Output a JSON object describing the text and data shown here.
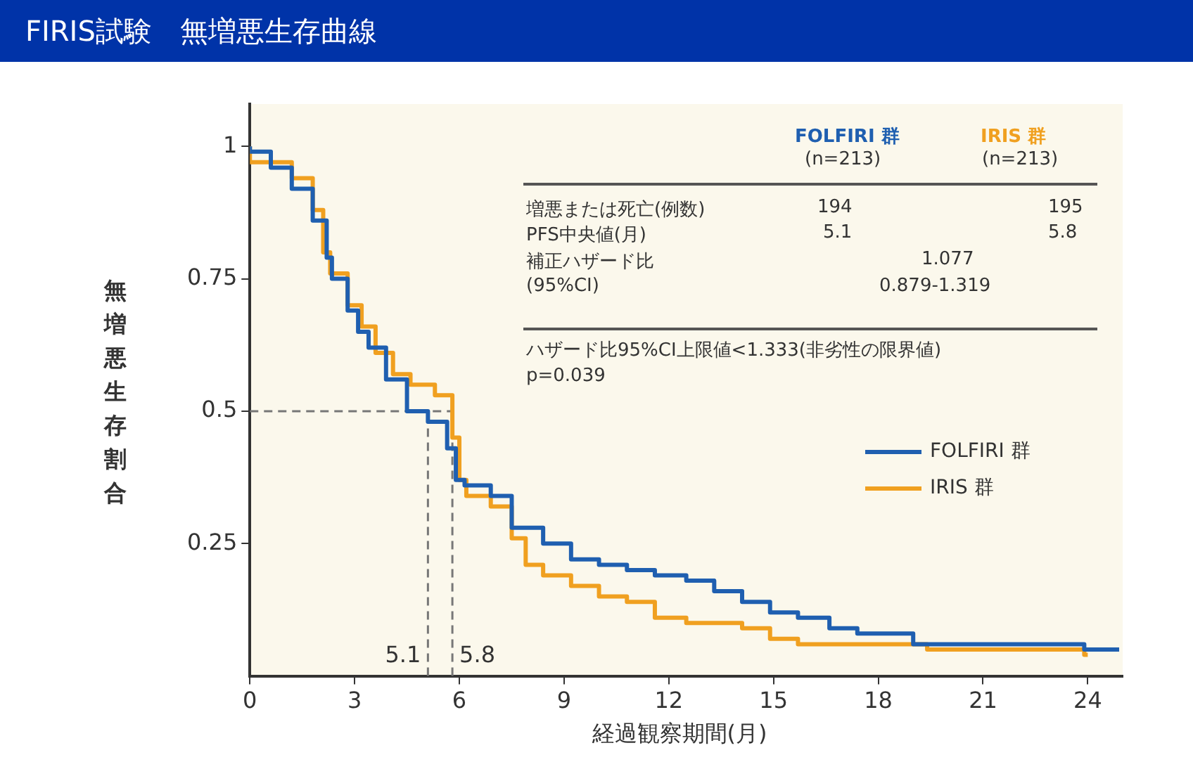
{
  "chart_data": {
    "type": "step",
    "title": "FIRIS試験　無増悪生存曲線",
    "xlabel": "経過観察期間(月)",
    "ylabel": "無増悪生存割合",
    "xlim": [
      0,
      25
    ],
    "xticks": [
      0,
      3,
      6,
      9,
      12,
      15,
      18,
      21,
      24
    ],
    "ylim": [
      0,
      1.08
    ],
    "yticks": [
      0.25,
      0.5,
      0.75,
      1
    ],
    "grid": false,
    "legend": "right",
    "marker": "none",
    "line_style": "solid",
    "series": [
      {
        "name": "FOLFIRI 群",
        "color": "#1f5fb0",
        "x": [
          0,
          0.6,
          1.2,
          1.8,
          2.2,
          2.35,
          2.8,
          3.1,
          3.4,
          3.9,
          4.5,
          5.1,
          5.65,
          5.9,
          6.15,
          6.9,
          7.5,
          8.4,
          9.2,
          10,
          10.8,
          11.6,
          12.5,
          13.3,
          14.1,
          14.9,
          15.7,
          16.6,
          17.4,
          19,
          21.5,
          23.9,
          24.9
        ],
        "values": [
          1,
          0.99,
          0.96,
          0.92,
          0.86,
          0.79,
          0.75,
          0.69,
          0.65,
          0.62,
          0.56,
          0.5,
          0.48,
          0.43,
          0.37,
          0.36,
          0.34,
          0.28,
          0.25,
          0.22,
          0.21,
          0.2,
          0.19,
          0.18,
          0.16,
          0.14,
          0.12,
          0.11,
          0.09,
          0.08,
          0.06,
          0.06,
          0.05
        ]
      },
      {
        "name": "IRIS 群",
        "color": "#f0a020",
        "x": [
          0,
          1.2,
          1.8,
          2.1,
          2.3,
          2.8,
          3.2,
          3.6,
          4.1,
          4.6,
          5.3,
          5.8,
          6,
          6.2,
          6.9,
          7.5,
          7.9,
          8.4,
          9.2,
          10,
          10.8,
          11.6,
          12.5,
          13.3,
          14.1,
          14.9,
          15.7,
          16.3,
          19.4,
          23.9,
          24
        ],
        "values": [
          1,
          0.97,
          0.94,
          0.88,
          0.8,
          0.76,
          0.7,
          0.66,
          0.61,
          0.57,
          0.55,
          0.53,
          0.45,
          0.37,
          0.34,
          0.32,
          0.26,
          0.21,
          0.19,
          0.17,
          0.15,
          0.14,
          0.11,
          0.1,
          0.1,
          0.09,
          0.07,
          0.06,
          0.06,
          0.05,
          0.04
        ]
      }
    ],
    "ref_lines": [
      {
        "axis": "y",
        "value": 0.5,
        "color": "#777777",
        "line_style": "dashed"
      },
      {
        "axis": "x",
        "value": 5.1,
        "label": "5.1",
        "color": "#777777",
        "line_style": "dashed"
      },
      {
        "axis": "x",
        "value": 5.8,
        "label": "5.8",
        "color": "#777777",
        "line_style": "dashed"
      }
    ],
    "annotations": [
      "FOLFIRI 群",
      "IRIS 群",
      "(n=213)",
      "(n=213)",
      "増悪または死亡(例数)",
      "194",
      "195",
      "PFS中央値(月)",
      "5.1",
      "5.8",
      "補正ハザード比",
      "1.077",
      "(95%CI)",
      "0.879-1.319",
      "ハザード比95%CI上限値<1.333(非劣性の限界値)",
      "p=0.039"
    ]
  }
}
